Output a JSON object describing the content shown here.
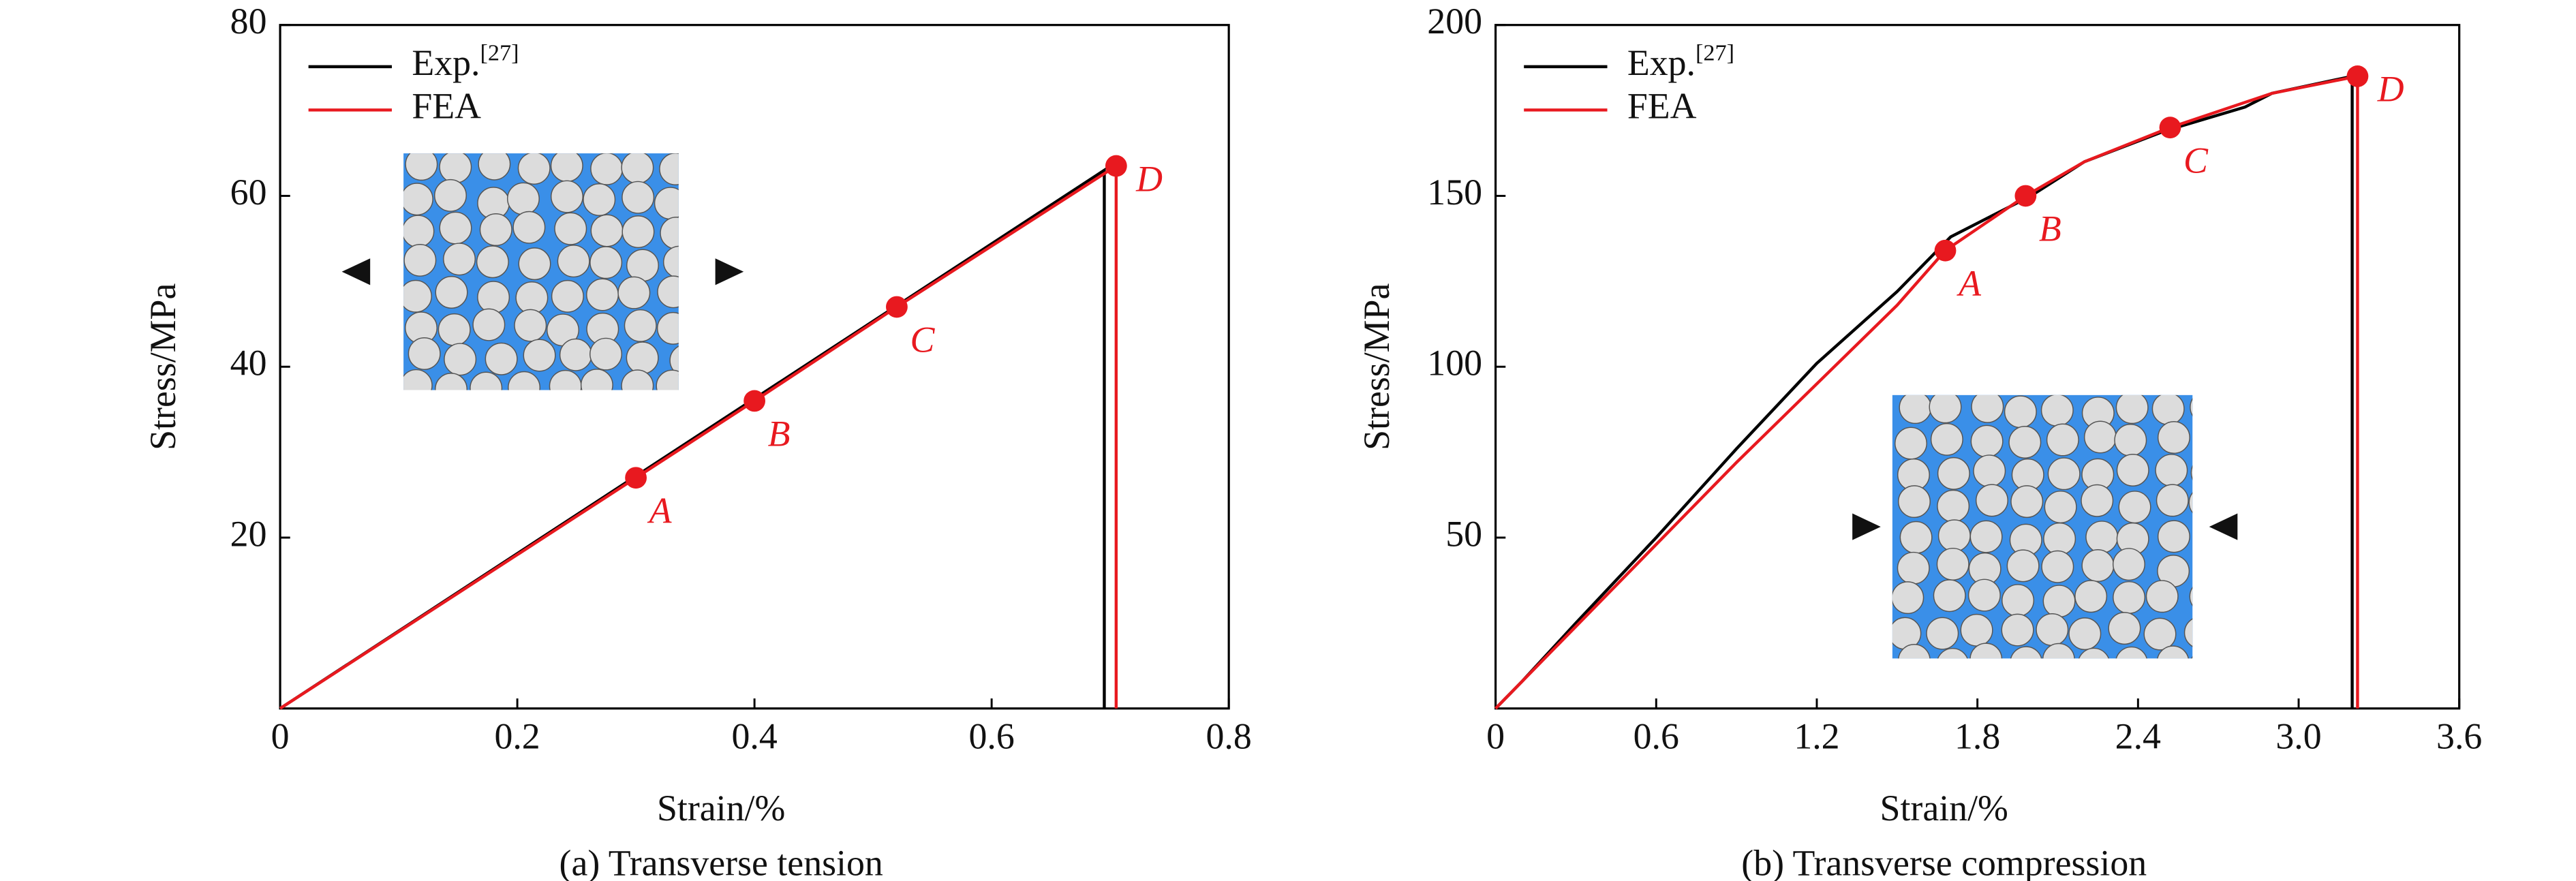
{
  "chart_data": [
    {
      "type": "line",
      "caption": "(a) Transverse tension",
      "xlabel": "Strain/%",
      "ylabel": "Stress/MPa",
      "xlim": [
        0,
        0.8
      ],
      "xticks": [
        0,
        0.2,
        0.4,
        0.6,
        0.8
      ],
      "ylim": [
        0,
        80
      ],
      "yticks": [
        20,
        40,
        60,
        80
      ],
      "series": [
        {
          "name": "Exp.",
          "name_superscript": "[27]",
          "color": "#000000",
          "x": [
            0,
            0.695,
            0.695
          ],
          "values": [
            0,
            63,
            0
          ]
        },
        {
          "name": "FEA",
          "color": "#e8191f",
          "x": [
            0,
            0.3,
            0.4,
            0.52,
            0.705,
            0.705
          ],
          "values": [
            0,
            27,
            36,
            47,
            63.5,
            0
          ]
        }
      ],
      "points": [
        {
          "label": "A",
          "x": 0.3,
          "y": 27
        },
        {
          "label": "B",
          "x": 0.4,
          "y": 36
        },
        {
          "label": "C",
          "x": 0.52,
          "y": 47
        },
        {
          "label": "D",
          "x": 0.705,
          "y": 63.5
        }
      ]
    },
    {
      "type": "line",
      "caption": "(b) Transverse compression",
      "xlabel": "Strain/%",
      "ylabel": "Stress/MPa",
      "xlim": [
        0,
        3.6
      ],
      "xticks": [
        0,
        0.6,
        1.2,
        1.8,
        2.4,
        {
          "value": 3,
          "label": "3.0"
        },
        3.6
      ],
      "ylim": [
        0,
        200
      ],
      "yticks": [
        50,
        100,
        150,
        200
      ],
      "series": [
        {
          "name": "Exp.",
          "name_superscript": "[27]",
          "color": "#000000",
          "x": [
            0,
            0.1,
            0.3,
            0.6,
            0.9,
            1.2,
            1.5,
            1.7,
            2.0,
            2.2,
            2.5,
            2.8,
            2.9,
            3.2,
            3.2
          ],
          "values": [
            0,
            8,
            25,
            50,
            76,
            101,
            122,
            138,
            150,
            160,
            169,
            176,
            180,
            185,
            0
          ]
        },
        {
          "name": "FEA",
          "color": "#e8191f",
          "x": [
            0,
            0.1,
            0.3,
            0.6,
            0.9,
            1.2,
            1.5,
            1.68,
            1.98,
            2.2,
            2.52,
            2.9,
            3.22,
            3.22
          ],
          "values": [
            0,
            8,
            24,
            48,
            72,
            95,
            118,
            134,
            150,
            160,
            170,
            180,
            185,
            0
          ]
        }
      ],
      "points": [
        {
          "label": "A",
          "x": 1.68,
          "y": 134
        },
        {
          "label": "B",
          "x": 1.98,
          "y": 150
        },
        {
          "label": "C",
          "x": 2.52,
          "y": 170
        },
        {
          "label": "D",
          "x": 3.22,
          "y": 185
        }
      ]
    }
  ]
}
